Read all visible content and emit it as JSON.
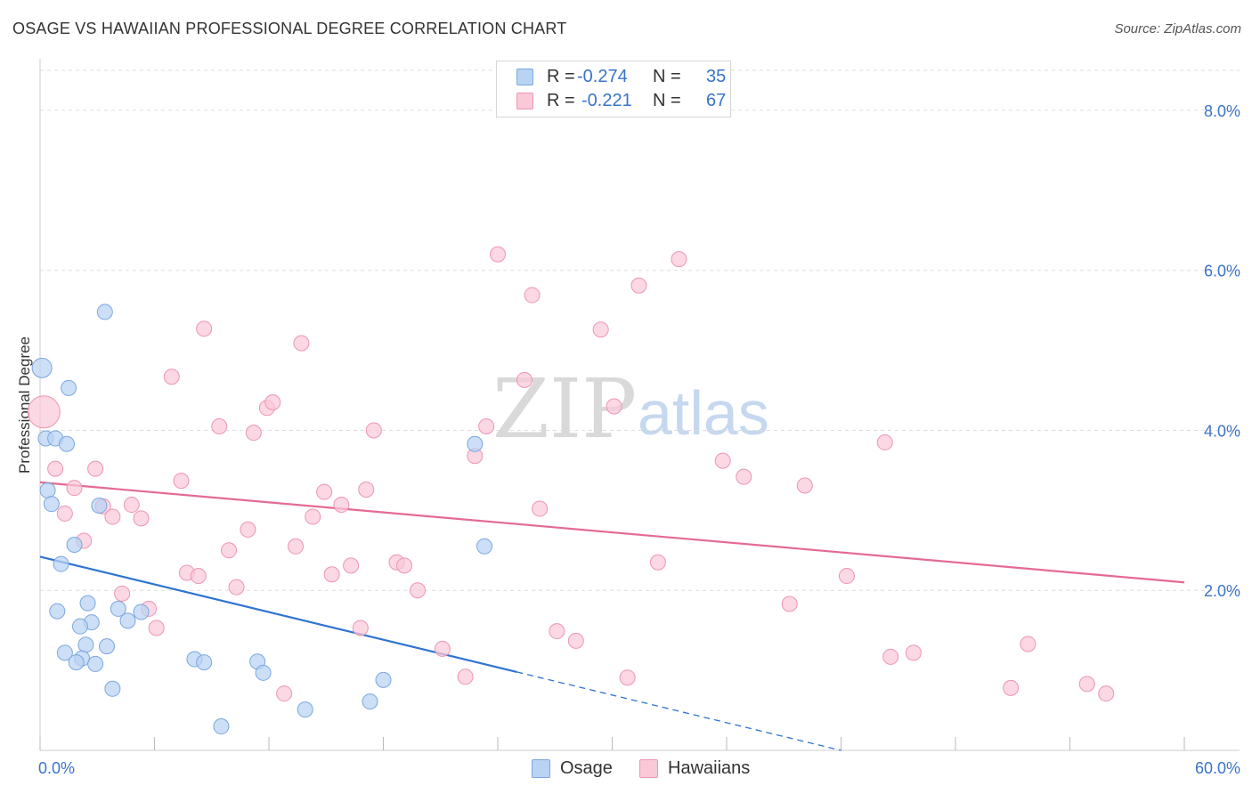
{
  "title": "OSAGE VS HAWAIIAN PROFESSIONAL DEGREE CORRELATION CHART",
  "source": "Source: ZipAtlas.com",
  "watermark": {
    "zip": "ZIP",
    "atlas": "atlas"
  },
  "legend": {
    "rows": [
      {
        "r_label": "R =",
        "r_value": "-0.274",
        "n_label": "N =",
        "n_value": "35",
        "color": "#b9d3f3",
        "stroke": "#7aa7e0"
      },
      {
        "r_label": "R =",
        "r_value": "-0.221",
        "n_label": "N =",
        "n_value": "67",
        "color": "#f9c9d8",
        "stroke": "#ee95b1"
      }
    ]
  },
  "bottom_legend": [
    {
      "label": "Osage",
      "color": "#b9d3f3",
      "stroke": "#7aa7e0"
    },
    {
      "label": "Hawaiians",
      "color": "#f9c9d8",
      "stroke": "#ee95b1"
    }
  ],
  "chart_data": {
    "type": "scatter",
    "title": "OSAGE VS HAWAIIAN PROFESSIONAL DEGREE CORRELATION CHART",
    "xlabel": "",
    "ylabel": "Professional Degree",
    "xlim": [
      0,
      60
    ],
    "ylim": [
      0,
      8.6
    ],
    "x_tick_labels": [
      {
        "value": 0,
        "label": "0.0%"
      },
      {
        "value": 60,
        "label": "60.0%"
      }
    ],
    "y_tick_labels": [
      {
        "value": 2,
        "label": "2.0%"
      },
      {
        "value": 4,
        "label": "4.0%"
      },
      {
        "value": 6,
        "label": "6.0%"
      },
      {
        "value": 8,
        "label": "8.0%"
      }
    ],
    "grid": true,
    "legend_position": "top-center",
    "series": [
      {
        "name": "Osage",
        "color": "#b9d3f3",
        "stroke": "#7aa7e0",
        "line_color": "#2f74d0",
        "trend": {
          "x0": 0,
          "y0": 2.42,
          "x1": 25.0,
          "y1": 0.98,
          "dash_to_x": 42.0,
          "dash_to_y": 0.0
        },
        "points": [
          {
            "x": 0.1,
            "y": 4.78,
            "s": 11
          },
          {
            "x": 1.5,
            "y": 4.53
          },
          {
            "x": 0.3,
            "y": 3.9
          },
          {
            "x": 0.8,
            "y": 3.9
          },
          {
            "x": 1.4,
            "y": 3.83
          },
          {
            "x": 0.4,
            "y": 3.25
          },
          {
            "x": 0.6,
            "y": 3.08
          },
          {
            "x": 3.1,
            "y": 3.06
          },
          {
            "x": 1.8,
            "y": 2.57
          },
          {
            "x": 1.1,
            "y": 2.33
          },
          {
            "x": 3.4,
            "y": 5.48
          },
          {
            "x": 0.9,
            "y": 1.74
          },
          {
            "x": 2.5,
            "y": 1.84
          },
          {
            "x": 2.7,
            "y": 1.6
          },
          {
            "x": 2.1,
            "y": 1.55
          },
          {
            "x": 2.4,
            "y": 1.32
          },
          {
            "x": 1.3,
            "y": 1.22
          },
          {
            "x": 2.2,
            "y": 1.15
          },
          {
            "x": 1.9,
            "y": 1.1
          },
          {
            "x": 2.9,
            "y": 1.08
          },
          {
            "x": 3.5,
            "y": 1.3
          },
          {
            "x": 4.1,
            "y": 1.77
          },
          {
            "x": 4.6,
            "y": 1.62
          },
          {
            "x": 5.3,
            "y": 1.73
          },
          {
            "x": 3.8,
            "y": 0.77
          },
          {
            "x": 8.1,
            "y": 1.14
          },
          {
            "x": 8.6,
            "y": 1.1
          },
          {
            "x": 11.4,
            "y": 1.11
          },
          {
            "x": 11.7,
            "y": 0.97
          },
          {
            "x": 13.9,
            "y": 0.51
          },
          {
            "x": 9.5,
            "y": 0.3
          },
          {
            "x": 17.3,
            "y": 0.61
          },
          {
            "x": 18.0,
            "y": 0.88
          },
          {
            "x": 22.8,
            "y": 3.83
          },
          {
            "x": 23.3,
            "y": 2.55
          }
        ]
      },
      {
        "name": "Hawaiians",
        "color": "#f9c9d8",
        "stroke": "#ee95b1",
        "line_color": "#e56a92",
        "trend": {
          "x0": 0,
          "y0": 3.35,
          "x1": 60,
          "y1": 2.1
        },
        "points": [
          {
            "x": 0.2,
            "y": 4.23,
            "s": 18
          },
          {
            "x": 0.8,
            "y": 3.52
          },
          {
            "x": 1.3,
            "y": 2.96
          },
          {
            "x": 1.8,
            "y": 3.28
          },
          {
            "x": 2.3,
            "y": 2.62
          },
          {
            "x": 2.9,
            "y": 3.52
          },
          {
            "x": 3.3,
            "y": 3.05
          },
          {
            "x": 3.8,
            "y": 2.92
          },
          {
            "x": 4.3,
            "y": 1.96
          },
          {
            "x": 4.8,
            "y": 3.07
          },
          {
            "x": 5.3,
            "y": 2.9
          },
          {
            "x": 5.7,
            "y": 1.77
          },
          {
            "x": 6.1,
            "y": 1.53
          },
          {
            "x": 6.9,
            "y": 4.67
          },
          {
            "x": 7.4,
            "y": 3.37
          },
          {
            "x": 7.7,
            "y": 2.22
          },
          {
            "x": 8.3,
            "y": 2.18
          },
          {
            "x": 8.6,
            "y": 5.27
          },
          {
            "x": 9.4,
            "y": 4.05
          },
          {
            "x": 9.9,
            "y": 2.5
          },
          {
            "x": 10.3,
            "y": 2.04
          },
          {
            "x": 10.9,
            "y": 2.76
          },
          {
            "x": 11.2,
            "y": 3.97
          },
          {
            "x": 11.9,
            "y": 4.28
          },
          {
            "x": 12.2,
            "y": 4.35
          },
          {
            "x": 12.8,
            "y": 0.71
          },
          {
            "x": 13.4,
            "y": 2.55
          },
          {
            "x": 13.7,
            "y": 5.09
          },
          {
            "x": 14.3,
            "y": 2.92
          },
          {
            "x": 14.9,
            "y": 3.23
          },
          {
            "x": 15.3,
            "y": 2.2
          },
          {
            "x": 15.8,
            "y": 3.07
          },
          {
            "x": 16.3,
            "y": 2.31
          },
          {
            "x": 16.8,
            "y": 1.53
          },
          {
            "x": 17.1,
            "y": 3.26
          },
          {
            "x": 17.5,
            "y": 4.0
          },
          {
            "x": 18.7,
            "y": 2.35
          },
          {
            "x": 19.1,
            "y": 2.31
          },
          {
            "x": 19.8,
            "y": 2.0
          },
          {
            "x": 21.1,
            "y": 1.27
          },
          {
            "x": 22.3,
            "y": 0.92
          },
          {
            "x": 22.8,
            "y": 3.68
          },
          {
            "x": 23.4,
            "y": 4.05
          },
          {
            "x": 24.0,
            "y": 6.2
          },
          {
            "x": 25.4,
            "y": 4.63
          },
          {
            "x": 25.8,
            "y": 5.69
          },
          {
            "x": 26.2,
            "y": 3.02
          },
          {
            "x": 27.1,
            "y": 1.49
          },
          {
            "x": 28.1,
            "y": 1.37
          },
          {
            "x": 29.4,
            "y": 5.26
          },
          {
            "x": 30.1,
            "y": 4.3
          },
          {
            "x": 30.8,
            "y": 0.91
          },
          {
            "x": 31.4,
            "y": 5.81
          },
          {
            "x": 32.4,
            "y": 2.35
          },
          {
            "x": 33.5,
            "y": 6.14
          },
          {
            "x": 35.8,
            "y": 3.62
          },
          {
            "x": 36.9,
            "y": 3.42
          },
          {
            "x": 39.3,
            "y": 1.83
          },
          {
            "x": 40.1,
            "y": 3.31
          },
          {
            "x": 42.3,
            "y": 2.18
          },
          {
            "x": 44.3,
            "y": 3.85
          },
          {
            "x": 44.6,
            "y": 1.17
          },
          {
            "x": 45.8,
            "y": 1.22
          },
          {
            "x": 50.9,
            "y": 0.78
          },
          {
            "x": 51.8,
            "y": 1.33
          },
          {
            "x": 54.9,
            "y": 0.83
          },
          {
            "x": 55.9,
            "y": 0.71
          }
        ]
      }
    ]
  }
}
